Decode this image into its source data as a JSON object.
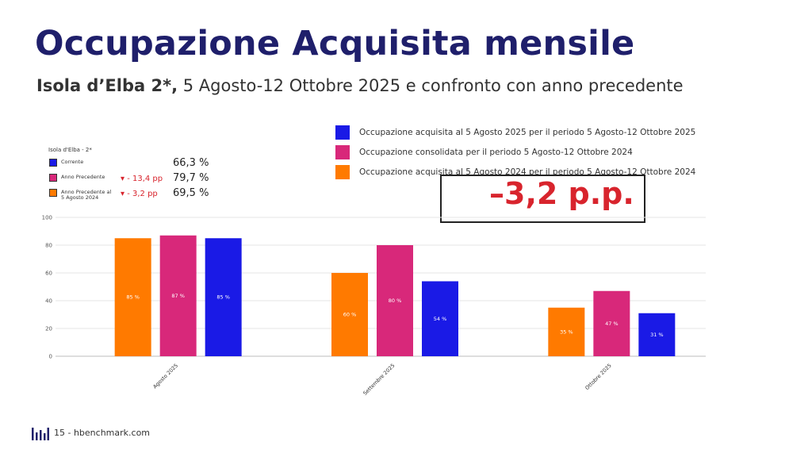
{
  "header": {
    "title": "Occupazione Acquisita mensile",
    "subtitle_bold": "Isola d’Elba 2*,",
    "subtitle_rest": " 5 Agosto-12 Ottobre 2025 e confronto con anno precedente"
  },
  "legend": [
    {
      "label": "Occupazione acquisita al 5 Agosto 2025 per il periodo 5 Agosto-12 Ottobre 2025",
      "color": "#1a1ae6"
    },
    {
      "label": "Occupazione consolidata per il periodo 5 Agosto-12 Ottobre 2024",
      "color": "#d8287a"
    },
    {
      "label": "Occupazione acquisita al 5 Agosto 2024 per il periodo 5 Agosto-12 Ottobre 2024",
      "color": "#ff7a00"
    }
  ],
  "delta_box": {
    "text": "–3,2 p.p."
  },
  "kpi": {
    "title": "Isola d'Elba - 2*",
    "rows": [
      {
        "name": "Corrente",
        "delta": "",
        "value": "66,3 %",
        "color": "#1a1ae6"
      },
      {
        "name": "Anno Precedente",
        "delta": "▾ - 13,4 pp",
        "value": "79,7 %",
        "color": "#d8287a"
      },
      {
        "name": "Anno Precedente al\n5 Agosto 2024",
        "delta": "▾ - 3,2 pp",
        "value": "69,5 %",
        "color": "#ff7a00"
      }
    ]
  },
  "chart_data": {
    "type": "bar",
    "categories": [
      "Agosto 2025",
      "Settembre 2025",
      "Ottobre 2025"
    ],
    "ylim": [
      0,
      100
    ],
    "yticks": [
      0,
      20,
      40,
      60,
      80,
      100
    ],
    "grid": true,
    "series": [
      {
        "color": "#ff7a00",
        "values": [
          85,
          60,
          35
        ],
        "labels": [
          "85 %",
          "60 %",
          "35 %"
        ]
      },
      {
        "color": "#d8287a",
        "values": [
          87,
          80,
          47
        ],
        "labels": [
          "87 %",
          "80 %",
          "47 %"
        ]
      },
      {
        "color": "#1a1ae6",
        "values": [
          85,
          54,
          31
        ],
        "labels": [
          "85 %",
          "54 %",
          "31 %"
        ]
      }
    ]
  },
  "footer": {
    "text": "15 - hbenchmark.com"
  }
}
